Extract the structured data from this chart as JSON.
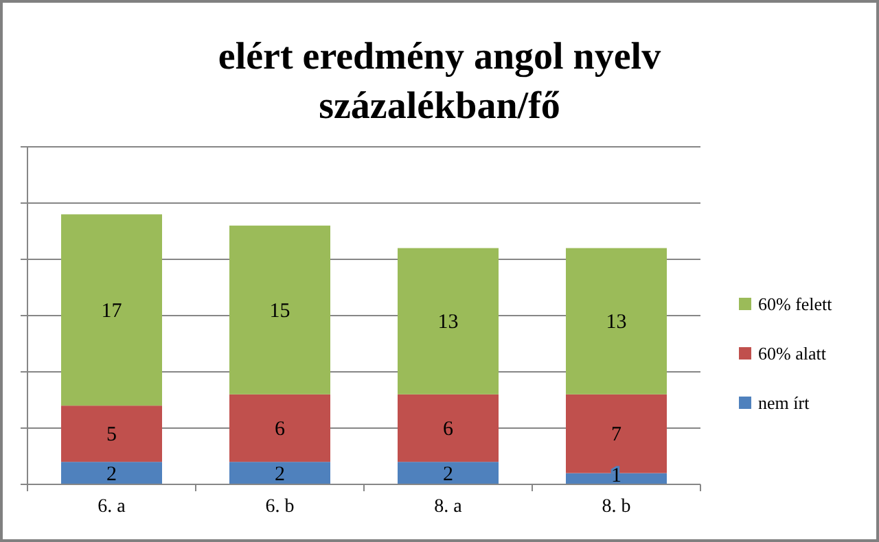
{
  "chart_data": {
    "type": "bar",
    "title": "elért eredmény angol nyelv százalékban/fő",
    "categories": [
      "6. a",
      "6. b",
      "8. a",
      "8. b"
    ],
    "series": [
      {
        "name": "nem írt",
        "color": "#4f81bd",
        "values": [
          2,
          2,
          2,
          1
        ]
      },
      {
        "name": "60% alatt",
        "color": "#c0504d",
        "values": [
          5,
          6,
          6,
          7
        ]
      },
      {
        "name": "60% felett",
        "color": "#9bbb59",
        "values": [
          17,
          15,
          13,
          13
        ]
      }
    ],
    "stacked": true,
    "data_labels": true,
    "ylim": [
      0,
      30
    ],
    "yticks": [
      {
        "value": 0,
        "label": null
      },
      {
        "value": 5,
        "label": null
      },
      {
        "value": 10,
        "label": null
      },
      {
        "value": 15,
        "label": null
      },
      {
        "value": 20,
        "label": null
      },
      {
        "value": 25,
        "label": null
      },
      {
        "value": 30,
        "label": null
      }
    ],
    "tick_labels": "x",
    "grid": "y",
    "legend": "right"
  }
}
